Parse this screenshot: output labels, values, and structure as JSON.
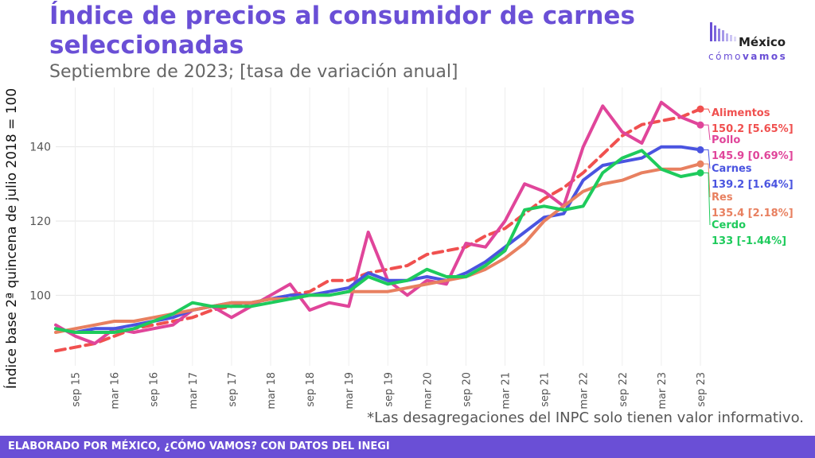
{
  "header": {
    "title": "Índice de precios al consumidor de carnes seleccionadas",
    "subtitle": "Septiembre de 2023; [tasa de variación anual]"
  },
  "logo": {
    "name": "México",
    "sub_prefix": "cómo",
    "sub_bold": "vamos",
    "icon": "bars-logo-icon",
    "color": "#6a4fd6"
  },
  "footnote": "*Las desagregaciones del INPC solo tienen valor informativo.",
  "footer": "ELABORADO POR MÉXICO, ¿CÓMO VAMOS? CON DATOS DEL INEGI",
  "chart_data": {
    "type": "line",
    "ylabel": "Índice base 2ª quincena de julio 2018 = 100",
    "xlabel": "",
    "ylim": [
      81,
      156
    ],
    "yticks": [
      100,
      120,
      140
    ],
    "xlim": [
      "2015-06",
      "2023-09"
    ],
    "xticks": [
      "sep 15",
      "mar 16",
      "sep 16",
      "mar 17",
      "sep 17",
      "mar 18",
      "sep 18",
      "mar 19",
      "sep 19",
      "mar 20",
      "sep 20",
      "mar 21",
      "sep 21",
      "mar 22",
      "sep 22",
      "mar 23",
      "sep 23"
    ],
    "grid": true,
    "x": [
      "2015-06",
      "2015-09",
      "2015-12",
      "2016-03",
      "2016-06",
      "2016-09",
      "2016-12",
      "2017-03",
      "2017-06",
      "2017-09",
      "2017-12",
      "2018-03",
      "2018-06",
      "2018-09",
      "2018-12",
      "2019-03",
      "2019-06",
      "2019-09",
      "2019-12",
      "2020-03",
      "2020-06",
      "2020-09",
      "2020-12",
      "2021-03",
      "2021-06",
      "2021-09",
      "2021-12",
      "2022-03",
      "2022-06",
      "2022-09",
      "2022-12",
      "2023-03",
      "2023-06",
      "2023-09"
    ],
    "series": [
      {
        "name": "Alimentos",
        "color": "#f0504f",
        "dashed": true,
        "values": [
          85,
          86,
          87,
          89,
          91,
          92,
          93,
          94,
          96,
          97,
          98,
          99,
          100,
          101,
          104,
          104,
          106,
          107,
          108,
          111,
          112,
          113,
          116,
          118,
          122,
          126,
          129,
          133,
          138,
          143,
          146,
          147,
          148,
          150.2
        ],
        "end_label": "150.2 [5.65%]"
      },
      {
        "name": "Pollo",
        "color": "#e0459a",
        "dashed": false,
        "values": [
          92,
          89,
          87,
          91,
          90,
          91,
          92,
          96,
          97,
          94,
          97,
          100,
          103,
          96,
          98,
          97,
          117,
          104,
          100,
          104,
          103,
          114,
          113,
          120,
          130,
          128,
          124,
          140,
          151,
          144,
          141,
          152,
          148,
          145.9
        ],
        "end_label": "145.9 [0.69%]"
      },
      {
        "name": "Carnes",
        "color": "#4a54e0",
        "dashed": false,
        "values": [
          91,
          90,
          91,
          91,
          92,
          93,
          94,
          96,
          97,
          98,
          98,
          99,
          100,
          100,
          101,
          102,
          106,
          104,
          104,
          105,
          104,
          106,
          109,
          113,
          117,
          121,
          122,
          131,
          135,
          136,
          137,
          140,
          140,
          139.2
        ],
        "end_label": "139.2 [1.64%]"
      },
      {
        "name": "Res",
        "color": "#e88060",
        "dashed": false,
        "values": [
          90,
          91,
          92,
          93,
          93,
          94,
          95,
          96,
          97,
          98,
          98,
          99,
          99,
          100,
          100,
          101,
          101,
          101,
          102,
          103,
          104,
          105,
          107,
          110,
          114,
          120,
          124,
          128,
          130,
          131,
          133,
          134,
          134,
          135.4
        ],
        "end_label": "135.4 [2.18%]"
      },
      {
        "name": "Cerdo",
        "color": "#1ecb5c",
        "dashed": false,
        "values": [
          91,
          90,
          90,
          90,
          91,
          93,
          95,
          98,
          97,
          97,
          97,
          98,
          99,
          100,
          100,
          101,
          105,
          103,
          104,
          107,
          105,
          105,
          108,
          112,
          123,
          124,
          123,
          124,
          133,
          137,
          139,
          134,
          132,
          133
        ],
        "end_label": "133 [-1.44%]"
      }
    ]
  }
}
